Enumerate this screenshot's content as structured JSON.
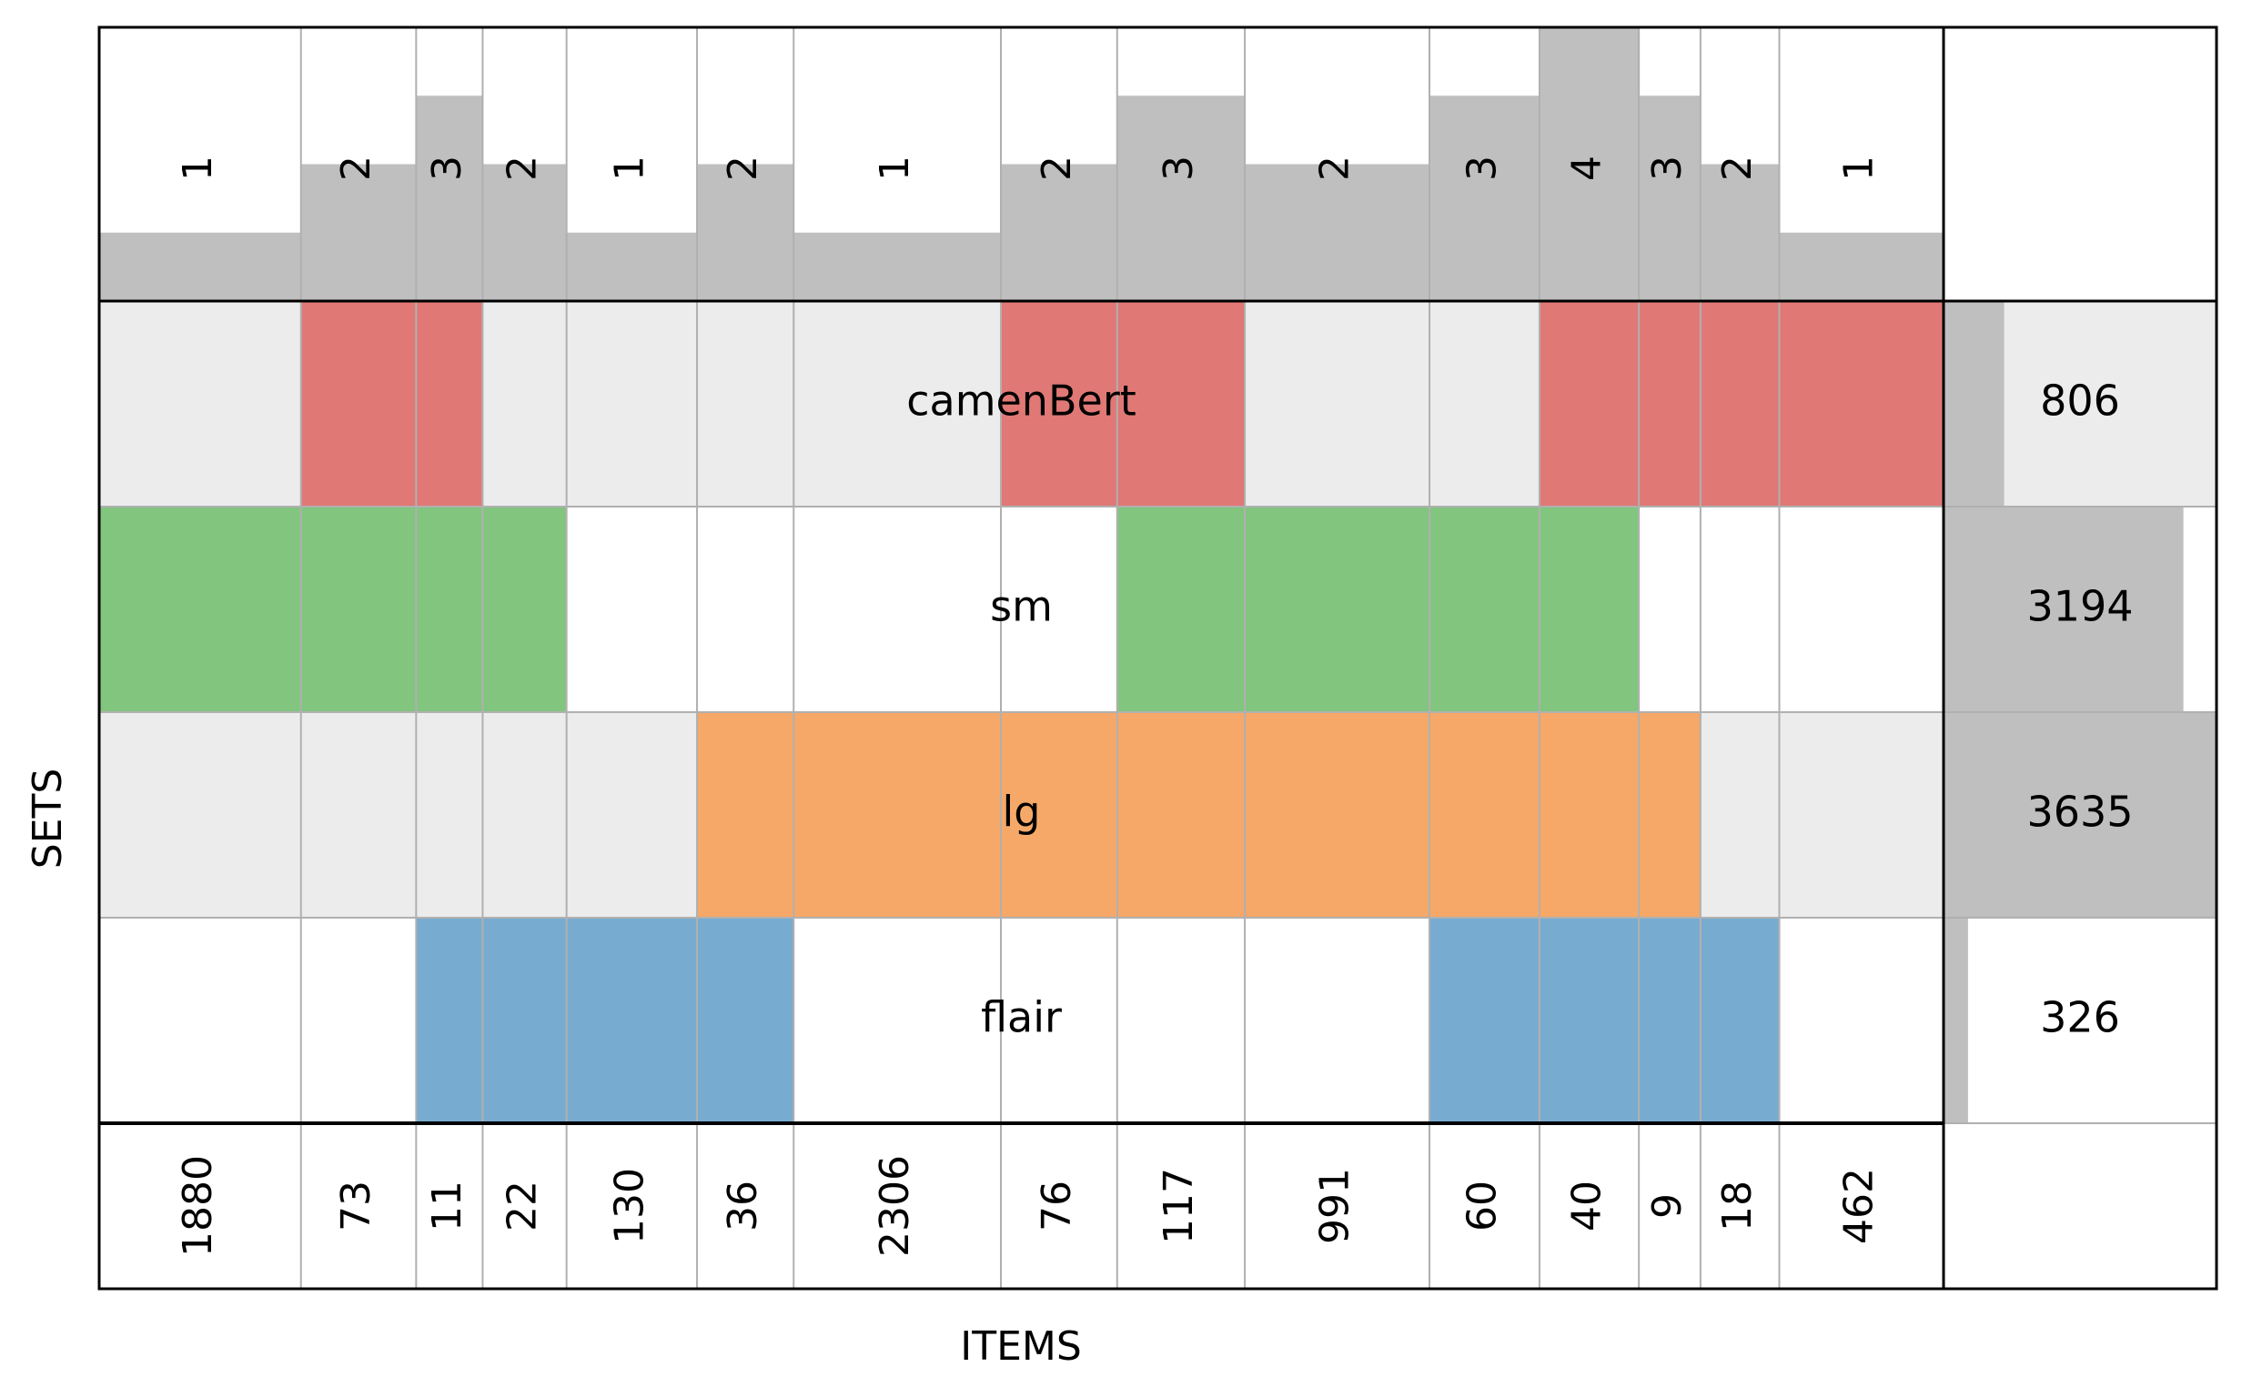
{
  "chart_data": {
    "type": "upset",
    "xlabel": "ITEMS",
    "ylabel": "SETS",
    "sets": [
      {
        "name": "camenBert",
        "size": 806,
        "color": "#e07875"
      },
      {
        "name": "sm",
        "size": 3194,
        "color": "#82c57f"
      },
      {
        "name": "lg",
        "size": 3635,
        "color": "#f5a868"
      },
      {
        "name": "flair",
        "size": 326,
        "color": "#78abd0"
      }
    ],
    "max_set_size": 3635,
    "max_degree": 4,
    "intersections": [
      {
        "count": 1880,
        "degree": 1,
        "members": [
          "sm"
        ]
      },
      {
        "count": 73,
        "degree": 2,
        "members": [
          "camenBert",
          "sm"
        ]
      },
      {
        "count": 11,
        "degree": 3,
        "members": [
          "camenBert",
          "sm",
          "flair"
        ]
      },
      {
        "count": 22,
        "degree": 2,
        "members": [
          "sm",
          "flair"
        ]
      },
      {
        "count": 130,
        "degree": 1,
        "members": [
          "flair"
        ]
      },
      {
        "count": 36,
        "degree": 2,
        "members": [
          "lg",
          "flair"
        ]
      },
      {
        "count": 2306,
        "degree": 1,
        "members": [
          "lg"
        ]
      },
      {
        "count": 76,
        "degree": 2,
        "members": [
          "camenBert",
          "lg"
        ]
      },
      {
        "count": 117,
        "degree": 3,
        "members": [
          "camenBert",
          "sm",
          "lg"
        ]
      },
      {
        "count": 991,
        "degree": 2,
        "members": [
          "sm",
          "lg"
        ]
      },
      {
        "count": 60,
        "degree": 3,
        "members": [
          "sm",
          "lg",
          "flair"
        ]
      },
      {
        "count": 40,
        "degree": 4,
        "members": [
          "camenBert",
          "sm",
          "lg",
          "flair"
        ]
      },
      {
        "count": 9,
        "degree": 3,
        "members": [
          "camenBert",
          "lg",
          "flair"
        ]
      },
      {
        "count": 18,
        "degree": 2,
        "members": [
          "camenBert",
          "flair"
        ]
      },
      {
        "count": 462,
        "degree": 1,
        "members": [
          "camenBert"
        ]
      }
    ],
    "colors": {
      "degree_bar": "#bfbfbf",
      "size_bar": "#bfbfbf",
      "row_shade": "#ececec",
      "grid": "#b0b0b0",
      "frame": "#000000"
    }
  }
}
